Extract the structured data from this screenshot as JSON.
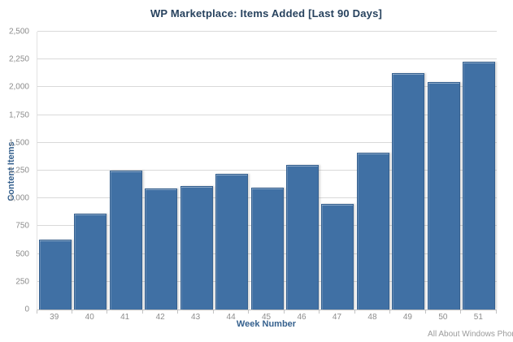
{
  "header": {
    "title": "WP Marketplace: Items Added [Last 90 Days]"
  },
  "footer": {
    "watermark": "All About Windows Phon"
  },
  "colors": {
    "background": "#FFFFFF",
    "title_text": "#27425E",
    "axis_title_text": "#36618E",
    "tick_label_text": "#8C8C8C",
    "gridline": "#D9D9D9",
    "axis_line": "#C4C4C4",
    "bar_fill": "#4070A4",
    "bar_border": "#35608F",
    "watermark_text": "#9B9B9B"
  },
  "chart_data": {
    "type": "bar",
    "title": "WP Marketplace: Items Added [Last 90 Days]",
    "xlabel": "Week Number",
    "ylabel": "Content Items",
    "categories": [
      "39",
      "40",
      "41",
      "42",
      "43",
      "44",
      "45",
      "46",
      "47",
      "48",
      "49",
      "50",
      "51"
    ],
    "values": [
      630,
      860,
      1250,
      1090,
      1110,
      1220,
      1100,
      1300,
      950,
      1410,
      2130,
      2050,
      2230
    ],
    "ylim": [
      0,
      2500
    ],
    "ytick_step": 250,
    "grid": "horizontal",
    "legend": "none"
  }
}
